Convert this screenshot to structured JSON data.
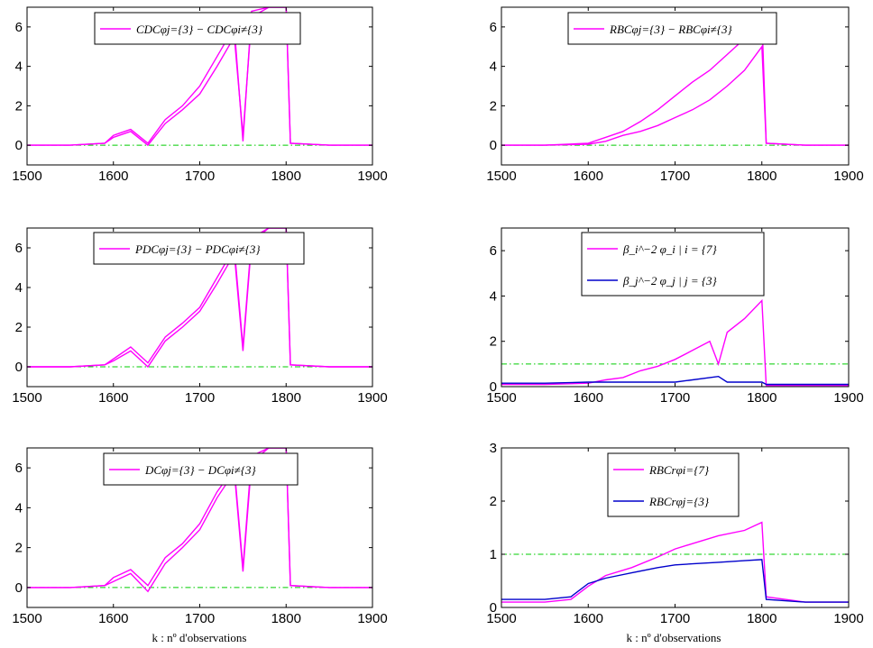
{
  "figure": {
    "xlabel_text": "k : nº d'observations"
  },
  "chart_data": [
    {
      "type": "line",
      "xlim": [
        1500,
        1900
      ],
      "ylim": [
        -1,
        7
      ],
      "xticks": [
        1500,
        1600,
        1700,
        1800,
        1900
      ],
      "yticks": [
        0,
        2,
        4,
        6
      ],
      "xlabel": "",
      "legend": {
        "location": "top-center",
        "entries": [
          "CDCφj={3} − CDCφi≠{3}"
        ]
      },
      "threshold": {
        "y": 0,
        "color": "#00cc00",
        "style": "dash-dot"
      },
      "series": [
        {
          "name": "CDCφj={3} − CDCφi≠{3}",
          "color": "#ff00ff",
          "x": [
            1500,
            1550,
            1590,
            1600,
            1620,
            1640,
            1660,
            1680,
            1700,
            1720,
            1740,
            1750,
            1760,
            1780,
            1800,
            1805,
            1850,
            1900
          ],
          "y": [
            0,
            0,
            0.1,
            0.5,
            0.8,
            0.1,
            1.3,
            2.0,
            3.0,
            4.5,
            6.0,
            0.2,
            6.8,
            7.0,
            7.0,
            0.1,
            0,
            0
          ]
        },
        {
          "name": "",
          "color": "#ff00ff",
          "x": [
            1500,
            1550,
            1590,
            1600,
            1620,
            1640,
            1660,
            1680,
            1700,
            1720,
            1740,
            1750,
            1760,
            1780,
            1800,
            1805,
            1850,
            1900
          ],
          "y": [
            0,
            0,
            0.1,
            0.4,
            0.7,
            0,
            1.1,
            1.8,
            2.6,
            4.0,
            5.5,
            0.5,
            6.5,
            7.0,
            7.0,
            0.1,
            0,
            0
          ]
        }
      ]
    },
    {
      "type": "line",
      "xlim": [
        1500,
        1900
      ],
      "ylim": [
        -1,
        7
      ],
      "xticks": [
        1500,
        1600,
        1700,
        1800,
        1900
      ],
      "yticks": [
        0,
        2,
        4,
        6
      ],
      "xlabel": "",
      "legend": {
        "location": "top-center",
        "entries": [
          "RBCφj={3} − RBCφi≠{3}"
        ]
      },
      "threshold": {
        "y": 0,
        "color": "#00cc00",
        "style": "dash-dot"
      },
      "series": [
        {
          "name": "RBCφj={3} − RBCφi≠{3}",
          "color": "#ff00ff",
          "x": [
            1500,
            1550,
            1600,
            1620,
            1640,
            1660,
            1680,
            1700,
            1720,
            1740,
            1760,
            1780,
            1800,
            1805,
            1850,
            1900
          ],
          "y": [
            0,
            0,
            0.1,
            0.4,
            0.7,
            1.2,
            1.8,
            2.5,
            3.2,
            3.8,
            4.6,
            5.4,
            6.5,
            0.1,
            0,
            0
          ]
        },
        {
          "name": "",
          "color": "#ff00ff",
          "x": [
            1500,
            1550,
            1600,
            1620,
            1640,
            1660,
            1680,
            1700,
            1720,
            1740,
            1760,
            1780,
            1800,
            1805,
            1850,
            1900
          ],
          "y": [
            0,
            0,
            0.05,
            0.2,
            0.5,
            0.7,
            1.0,
            1.4,
            1.8,
            2.3,
            3.0,
            3.8,
            5.0,
            0.1,
            0,
            0
          ]
        }
      ]
    },
    {
      "type": "line",
      "xlim": [
        1500,
        1900
      ],
      "ylim": [
        -1,
        7
      ],
      "xticks": [
        1500,
        1600,
        1700,
        1800,
        1900
      ],
      "yticks": [
        0,
        2,
        4,
        6
      ],
      "xlabel": "",
      "legend": {
        "location": "top-center",
        "entries": [
          "PDCφj={3} − PDCφi≠{3}"
        ]
      },
      "threshold": {
        "y": 0,
        "color": "#00cc00",
        "style": "dash-dot"
      },
      "series": [
        {
          "name": "PDCφj={3} − PDCφi≠{3}",
          "color": "#ff00ff",
          "x": [
            1500,
            1550,
            1590,
            1600,
            1620,
            1640,
            1660,
            1680,
            1700,
            1720,
            1740,
            1750,
            1760,
            1780,
            1800,
            1805,
            1850,
            1900
          ],
          "y": [
            0,
            0,
            0.1,
            0.4,
            1.0,
            0.2,
            1.5,
            2.2,
            3.0,
            4.5,
            6.0,
            1.0,
            6.5,
            7.0,
            7.0,
            0.1,
            0,
            0
          ]
        },
        {
          "name": "",
          "color": "#ff00ff",
          "x": [
            1500,
            1550,
            1590,
            1600,
            1620,
            1640,
            1660,
            1680,
            1700,
            1720,
            1740,
            1750,
            1760,
            1780,
            1800,
            1805,
            1850,
            1900
          ],
          "y": [
            0,
            0,
            0.1,
            0.3,
            0.8,
            0,
            1.3,
            2.0,
            2.8,
            4.2,
            5.7,
            0.8,
            6.3,
            7.0,
            7.0,
            0.1,
            0,
            0
          ]
        }
      ]
    },
    {
      "type": "line",
      "xlim": [
        1500,
        1900
      ],
      "ylim": [
        0,
        7
      ],
      "xticks": [
        1500,
        1600,
        1700,
        1800,
        1900
      ],
      "yticks": [
        0,
        2,
        4,
        6
      ],
      "xlabel": "",
      "legend": {
        "location": "top-center",
        "entries": [
          "β_i^−2 φ_i   |   i = {7}",
          "β_j^−2 φ_j   |   j = {3}"
        ]
      },
      "threshold": {
        "y": 1,
        "color": "#00cc00",
        "style": "dash-dot"
      },
      "series": [
        {
          "name": "β_i^−2 φ_i   |   i = {7}",
          "color": "#ff00ff",
          "x": [
            1500,
            1550,
            1600,
            1620,
            1640,
            1660,
            1680,
            1700,
            1720,
            1740,
            1750,
            1760,
            1780,
            1800,
            1805,
            1850,
            1900
          ],
          "y": [
            0.1,
            0.1,
            0.15,
            0.3,
            0.4,
            0.7,
            0.9,
            1.2,
            1.6,
            2.0,
            1.0,
            2.4,
            3.0,
            3.8,
            0.05,
            0.05,
            0.05
          ]
        },
        {
          "name": "β_j^−2 φ_j   |   j = {3}",
          "color": "#0000cc",
          "x": [
            1500,
            1550,
            1600,
            1650,
            1700,
            1750,
            1760,
            1800,
            1805,
            1850,
            1900
          ],
          "y": [
            0.15,
            0.15,
            0.2,
            0.2,
            0.2,
            0.45,
            0.2,
            0.2,
            0.1,
            0.1,
            0.1
          ]
        }
      ]
    },
    {
      "type": "line",
      "xlim": [
        1500,
        1900
      ],
      "ylim": [
        -1,
        7
      ],
      "xticks": [
        1500,
        1600,
        1700,
        1800,
        1900
      ],
      "yticks": [
        0,
        2,
        4,
        6
      ],
      "xlabel": "k : nº d'observations",
      "legend": {
        "location": "top-center",
        "entries": [
          "DCφj={3} − DCφi≠{3}"
        ]
      },
      "threshold": {
        "y": 0,
        "color": "#00cc00",
        "style": "dash-dot"
      },
      "series": [
        {
          "name": "DCφj={3} − DCφi≠{3}",
          "color": "#ff00ff",
          "x": [
            1500,
            1550,
            1590,
            1600,
            1620,
            1640,
            1660,
            1680,
            1700,
            1720,
            1740,
            1750,
            1760,
            1780,
            1800,
            1805,
            1850,
            1900
          ],
          "y": [
            0,
            0,
            0.1,
            0.5,
            0.9,
            0.1,
            1.5,
            2.2,
            3.2,
            4.8,
            6.0,
            1.0,
            6.6,
            7.0,
            7.0,
            0.1,
            0,
            0
          ]
        },
        {
          "name": "",
          "color": "#ff00ff",
          "x": [
            1500,
            1550,
            1590,
            1600,
            1620,
            1640,
            1660,
            1680,
            1700,
            1720,
            1740,
            1750,
            1760,
            1780,
            1800,
            1805,
            1850,
            1900
          ],
          "y": [
            0,
            0,
            0.1,
            0.3,
            0.7,
            -0.2,
            1.2,
            2.0,
            2.9,
            4.5,
            5.8,
            0.8,
            6.3,
            7.0,
            7.0,
            0.1,
            0,
            0
          ]
        }
      ]
    },
    {
      "type": "line",
      "xlim": [
        1500,
        1900
      ],
      "ylim": [
        0,
        3
      ],
      "xticks": [
        1500,
        1600,
        1700,
        1800,
        1900
      ],
      "yticks": [
        0,
        1,
        2,
        3
      ],
      "xlabel": "k : nº d'observations",
      "legend": {
        "location": "top-center",
        "entries": [
          "RBCrφi={7}",
          "RBCrφj={3}"
        ]
      },
      "threshold": {
        "y": 1,
        "color": "#00cc00",
        "style": "dash-dot"
      },
      "series": [
        {
          "name": "RBCrφi={7}",
          "color": "#ff00ff",
          "x": [
            1500,
            1550,
            1580,
            1600,
            1620,
            1650,
            1680,
            1700,
            1720,
            1750,
            1780,
            1800,
            1805,
            1850,
            1900
          ],
          "y": [
            0.1,
            0.1,
            0.15,
            0.4,
            0.6,
            0.75,
            0.95,
            1.1,
            1.2,
            1.35,
            1.45,
            1.6,
            0.2,
            0.1,
            0.1
          ]
        },
        {
          "name": "RBCrφj={3}",
          "color": "#0000cc",
          "x": [
            1500,
            1550,
            1580,
            1600,
            1620,
            1650,
            1680,
            1700,
            1720,
            1750,
            1780,
            1800,
            1805,
            1850,
            1900
          ],
          "y": [
            0.15,
            0.15,
            0.2,
            0.45,
            0.55,
            0.65,
            0.75,
            0.8,
            0.82,
            0.85,
            0.88,
            0.9,
            0.15,
            0.1,
            0.1
          ]
        }
      ]
    }
  ]
}
